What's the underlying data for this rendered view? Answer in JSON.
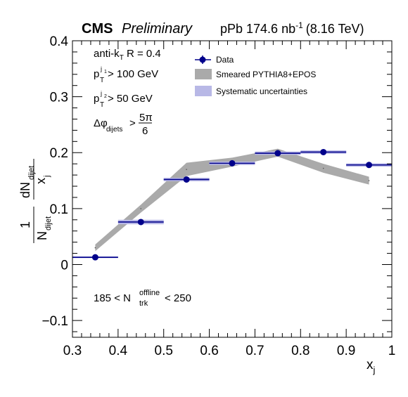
{
  "header": {
    "experiment": "CMS",
    "status": "Preliminary",
    "lumi_main": "pPb 174.6 nb",
    "lumi_exp": "-1",
    "energy": "(8.16 TeV)"
  },
  "annotations": {
    "algo": "anti-k",
    "algo_sub": "T",
    "algo_rest": " R = 0.4",
    "pt1_main": "p",
    "pt1_sup": "j",
    "pt1_supsub": "1",
    "pt1_sub": "T",
    "pt1_rest": "> 100 GeV",
    "pt2_main": "p",
    "pt2_sup": "j",
    "pt2_supsub": "2",
    "pt2_sub": "T",
    "pt2_rest": "> 50 GeV",
    "dphi_main": "Δφ",
    "dphi_sub": "dijets",
    "dphi_gt": ">",
    "dphi_num": "5π",
    "dphi_den": "6",
    "ntrk_lo": "185 < N",
    "ntrk_sup": "offline",
    "ntrk_sub": "trk",
    "ntrk_hi": "< 250"
  },
  "chart_data": {
    "type": "scatter",
    "xlabel": "x",
    "xlabel_sub": "j",
    "ylabel_frac_main": "1",
    "ylabel_N": "N",
    "ylabel_N_sub": "dijet",
    "ylabel_dN": "dN",
    "ylabel_dN_sub": "dijet",
    "ylabel_dx": "x",
    "ylabel_dx_sub": "j",
    "xlim": [
      0.3,
      1.0
    ],
    "ylim": [
      -0.13,
      0.4
    ],
    "x_ticks": [
      0.3,
      0.4,
      0.5,
      0.6,
      0.7,
      0.8,
      0.9,
      1.0
    ],
    "x_tick_labels": [
      "0.3",
      "0.4",
      "0.5",
      "0.6",
      "0.7",
      "0.8",
      "0.9",
      "1"
    ],
    "y_ticks": [
      -0.1,
      0,
      0.1,
      0.2,
      0.3,
      0.4
    ],
    "y_tick_labels": [
      "−0.1",
      "0",
      "0.1",
      "0.2",
      "0.3",
      "0.4"
    ],
    "legend": {
      "placement": "top-center",
      "entries": [
        "Data",
        "Smeared PYTHIA8+EPOS",
        "Systematic uncertainties"
      ]
    },
    "series": [
      {
        "name": "Data",
        "color": "#00008b",
        "x": [
          0.35,
          0.45,
          0.55,
          0.65,
          0.75,
          0.85,
          0.95
        ],
        "xerr": [
          0.05,
          0.05,
          0.05,
          0.05,
          0.05,
          0.05,
          0.05
        ],
        "y": [
          0.013,
          0.076,
          0.152,
          0.181,
          0.199,
          0.201,
          0.178
        ],
        "syst": [
          0.0015,
          0.004,
          0.003,
          0.003,
          0.003,
          0.003,
          0.003
        ]
      },
      {
        "name": "Smeared PYTHIA8+EPOS",
        "color": "#aaaaaa",
        "x": [
          0.35,
          0.45,
          0.55,
          0.65,
          0.75,
          0.85,
          0.95
        ],
        "y": [
          0.03,
          0.1,
          0.17,
          0.183,
          0.2,
          0.172,
          0.15
        ],
        "band_halfwidth": [
          0.006,
          0.007,
          0.012,
          0.008,
          0.007,
          0.008,
          0.007
        ]
      }
    ]
  }
}
